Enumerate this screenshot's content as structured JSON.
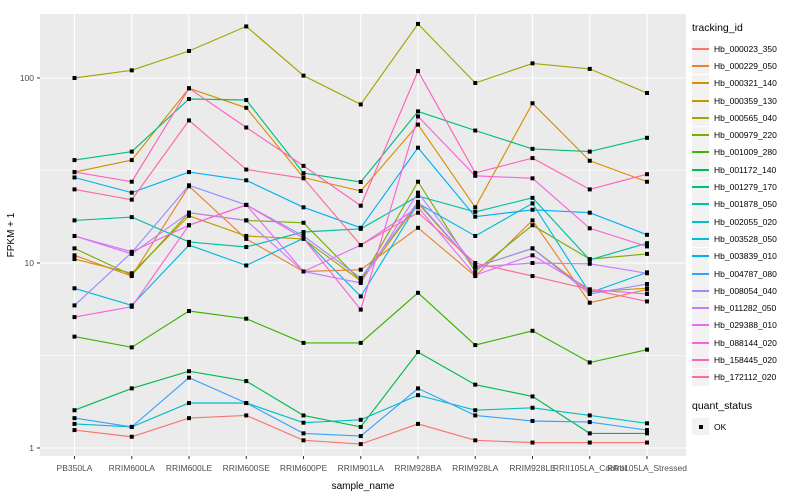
{
  "chart_data": {
    "type": "line",
    "title": "",
    "xlabel": "sample_name",
    "ylabel": "FPKM + 1",
    "y_scale": "log10",
    "y_ticks": [
      1,
      10,
      100
    ],
    "ylim": [
      0.9,
      222
    ],
    "grid": "on",
    "panel_bg": "#EBEBEB",
    "grid_color": "#FFFFFF",
    "point_color": "#000000",
    "tick_label_color": "#4D4D4D",
    "legend": {
      "color_title": "tracking_id",
      "shape_title": "quant_status",
      "shape_items": [
        {
          "label": "OK",
          "shape": "filled-square"
        }
      ]
    },
    "categories": [
      "PB350LA",
      "RRIM600LA",
      "RRIM600LE",
      "RRIM600SE",
      "RRIM600PE",
      "RRIM901LA",
      "RRIM928BA",
      "RRIM928LA",
      "RRIM928LE",
      "RRII105LA_Control",
      "RRII105LA_Stressed"
    ],
    "series": [
      {
        "name": "Hb_000023_350",
        "color": "#F8766D",
        "values": [
          1.25,
          1.15,
          1.45,
          1.5,
          1.1,
          1.05,
          1.35,
          1.1,
          1.07,
          1.07,
          1.07
        ]
      },
      {
        "name": "Hb_000229_050",
        "color": "#EA8331",
        "values": [
          11,
          8.5,
          26,
          13.5,
          9,
          9.2,
          15.5,
          8.5,
          17,
          6.1,
          7.2
        ]
      },
      {
        "name": "Hb_000321_140",
        "color": "#D89000",
        "values": [
          31,
          36,
          88,
          69,
          29,
          24.5,
          56,
          20,
          73,
          35.7,
          27.5
        ]
      },
      {
        "name": "Hb_000359_130",
        "color": "#C09B00",
        "values": [
          10.5,
          8.8,
          18,
          14,
          13.5,
          8,
          21,
          9.5,
          12,
          7,
          7.3
        ]
      },
      {
        "name": "Hb_000565_040",
        "color": "#A3A500",
        "values": [
          100,
          110,
          140,
          190,
          103,
          72,
          196,
          94,
          120,
          112,
          83
        ]
      },
      {
        "name": "Hb_000979_220",
        "color": "#7CAE00",
        "values": [
          12,
          8.6,
          18.7,
          17,
          16.5,
          8,
          27.5,
          9,
          16,
          10.5,
          11.2
        ]
      },
      {
        "name": "Hb_001009_280",
        "color": "#39B600",
        "values": [
          4.0,
          3.5,
          5.5,
          5.0,
          3.7,
          3.7,
          6.9,
          3.6,
          4.3,
          2.9,
          3.4
        ]
      },
      {
        "name": "Hb_001172_140",
        "color": "#00BB4E",
        "values": [
          1.6,
          2.1,
          2.6,
          2.3,
          1.5,
          1.3,
          3.3,
          2.2,
          1.9,
          1.2,
          1.2
        ]
      },
      {
        "name": "Hb_001279_170",
        "color": "#00BF7D",
        "values": [
          36,
          40,
          77,
          76,
          30.6,
          27.4,
          66,
          52,
          41.4,
          40,
          47.5
        ]
      },
      {
        "name": "Hb_001878_050",
        "color": "#00C1A3",
        "values": [
          17,
          17.7,
          13,
          12.2,
          14.7,
          15.3,
          23,
          18.9,
          22.5,
          10.4,
          12.8
        ]
      },
      {
        "name": "Hb_002055_020",
        "color": "#00BFC4",
        "values": [
          1.35,
          1.3,
          1.75,
          1.75,
          1.37,
          1.42,
          1.93,
          1.6,
          1.65,
          1.5,
          1.36
        ]
      },
      {
        "name": "Hb_003528_050",
        "color": "#00BAE0",
        "values": [
          7.3,
          5.9,
          12.5,
          9.7,
          13.6,
          6.6,
          21,
          14,
          21,
          6.9,
          8.9
        ]
      },
      {
        "name": "Hb_003839_010",
        "color": "#00B0F6",
        "values": [
          29,
          24,
          31,
          28,
          20,
          15.5,
          42,
          17.8,
          19.4,
          18.7,
          14.2
        ]
      },
      {
        "name": "Hb_004787_080",
        "color": "#35A2FF",
        "values": [
          1.45,
          1.3,
          2.4,
          1.75,
          1.2,
          1.16,
          2.1,
          1.5,
          1.4,
          1.38,
          1.25
        ]
      },
      {
        "name": "Hb_008054_040",
        "color": "#9590FF",
        "values": [
          5.9,
          11.4,
          26.3,
          20.6,
          14,
          8.3,
          21.4,
          9.5,
          12,
          6.8,
          7.7
        ]
      },
      {
        "name": "Hb_011282_050",
        "color": "#C77CFF",
        "values": [
          14,
          11.2,
          18.7,
          17,
          9,
          7.8,
          24,
          9.5,
          10,
          9.9,
          8.8
        ]
      },
      {
        "name": "Hb_029388_010",
        "color": "#E76BF3",
        "values": [
          14,
          11.5,
          16,
          20.6,
          9,
          12.5,
          20,
          8.6,
          11,
          7.2,
          6.8
        ]
      },
      {
        "name": "Hb_088144_020",
        "color": "#FA62DB",
        "values": [
          5.1,
          5.8,
          16,
          20.6,
          13.6,
          5.6,
          62,
          29.6,
          28.7,
          15.4,
          12.3
        ]
      },
      {
        "name": "Hb_158445_020",
        "color": "#FF62BC",
        "values": [
          31,
          27.5,
          88,
          54,
          33.5,
          20.4,
          109,
          30.7,
          36.9,
          25,
          30.2
        ]
      },
      {
        "name": "Hb_172112_020",
        "color": "#FF6A98",
        "values": [
          25,
          22,
          59,
          32,
          28.7,
          12.5,
          18.7,
          10,
          8.5,
          7.2,
          6.2
        ]
      }
    ]
  }
}
